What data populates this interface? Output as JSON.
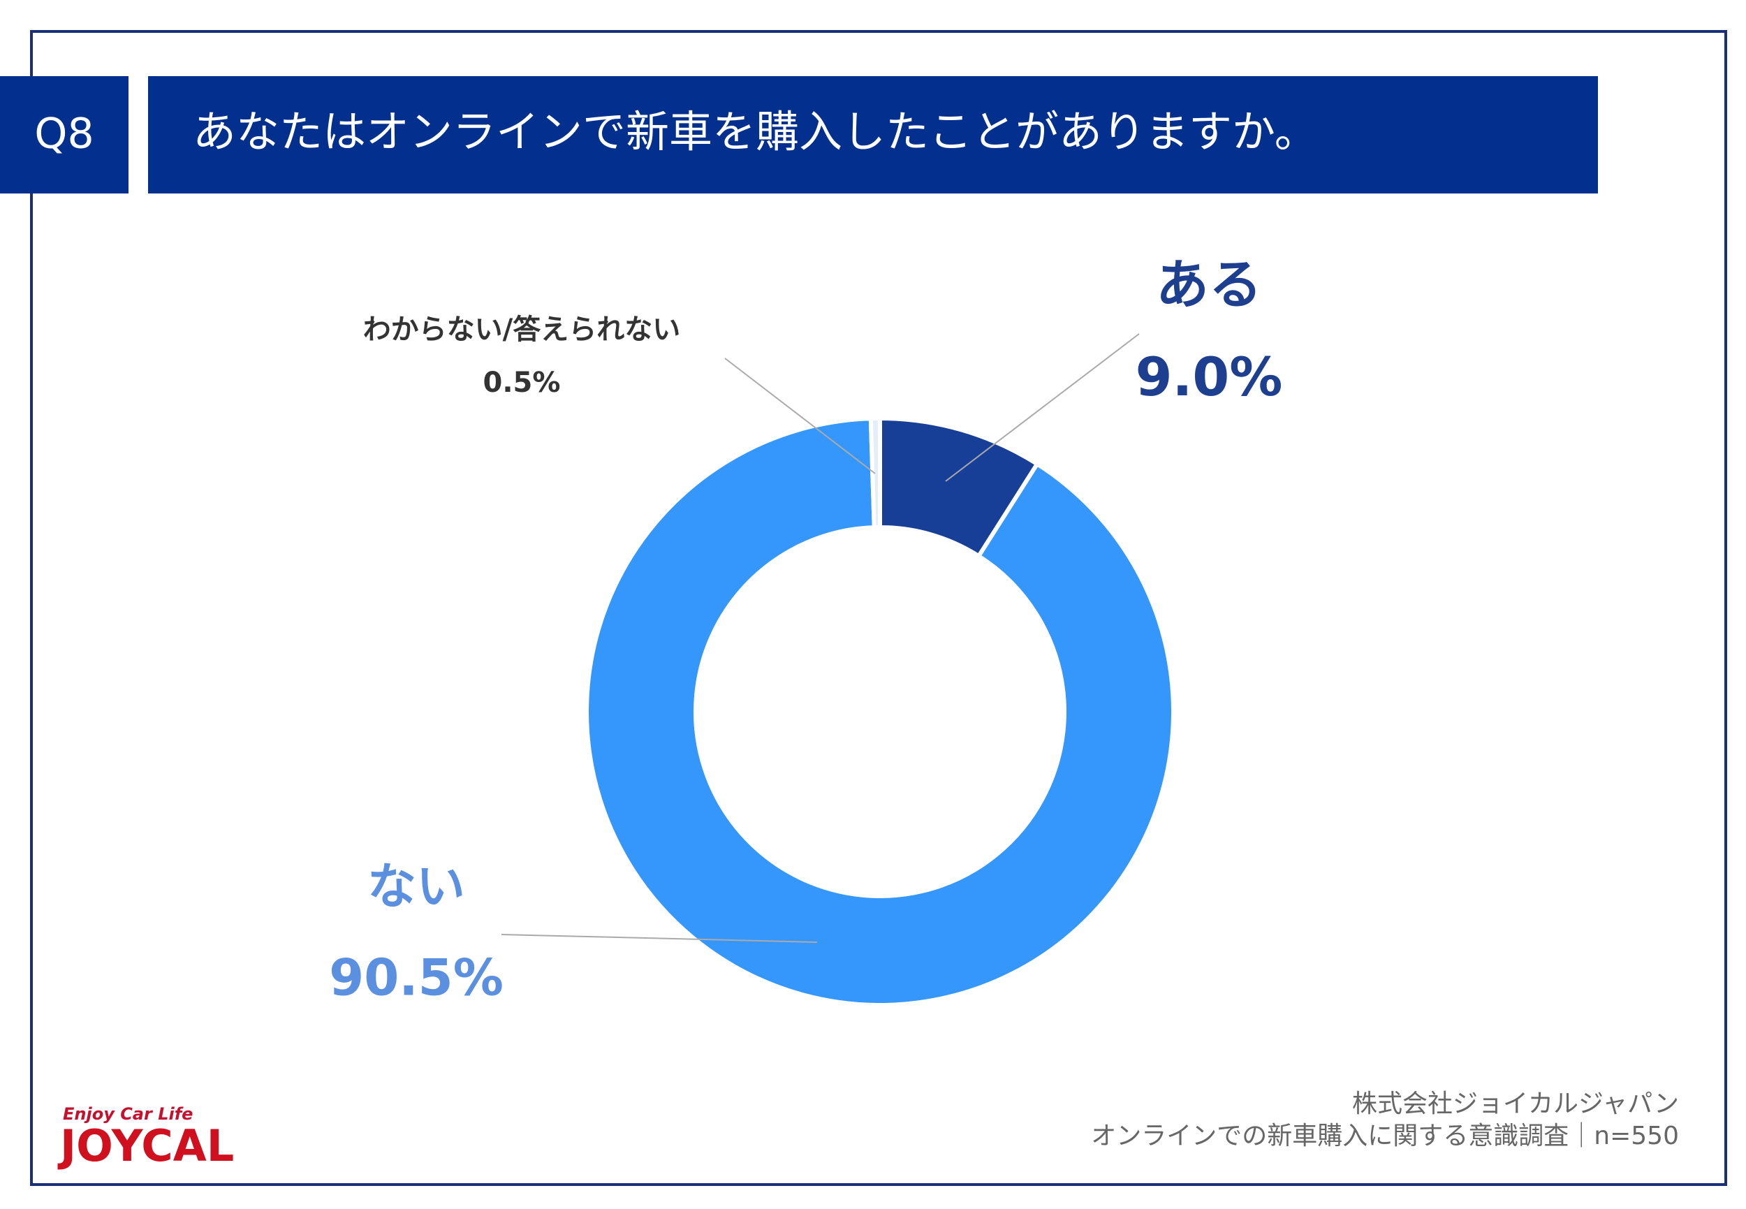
{
  "question_label": "Q8",
  "chart_data": {
    "type": "donut",
    "title": "あなたはオンラインで新車を購入したことがありますか。",
    "categories": [
      "ある",
      "ない",
      "わからない/答えられない"
    ],
    "values": [
      9.0,
      90.5,
      0.5
    ],
    "value_labels": [
      "9.0%",
      "90.5%",
      "0.5%"
    ],
    "colors": [
      "#173f97",
      "#3597fb",
      "#e4edf8"
    ]
  },
  "footer": {
    "company": "株式会社ジョイカルジャパン",
    "survey": "オンラインでの新車購入に関する意識調査｜n=550"
  },
  "logo": {
    "tagline": "Enjoy Car Life",
    "brand": "JOYCAL"
  }
}
